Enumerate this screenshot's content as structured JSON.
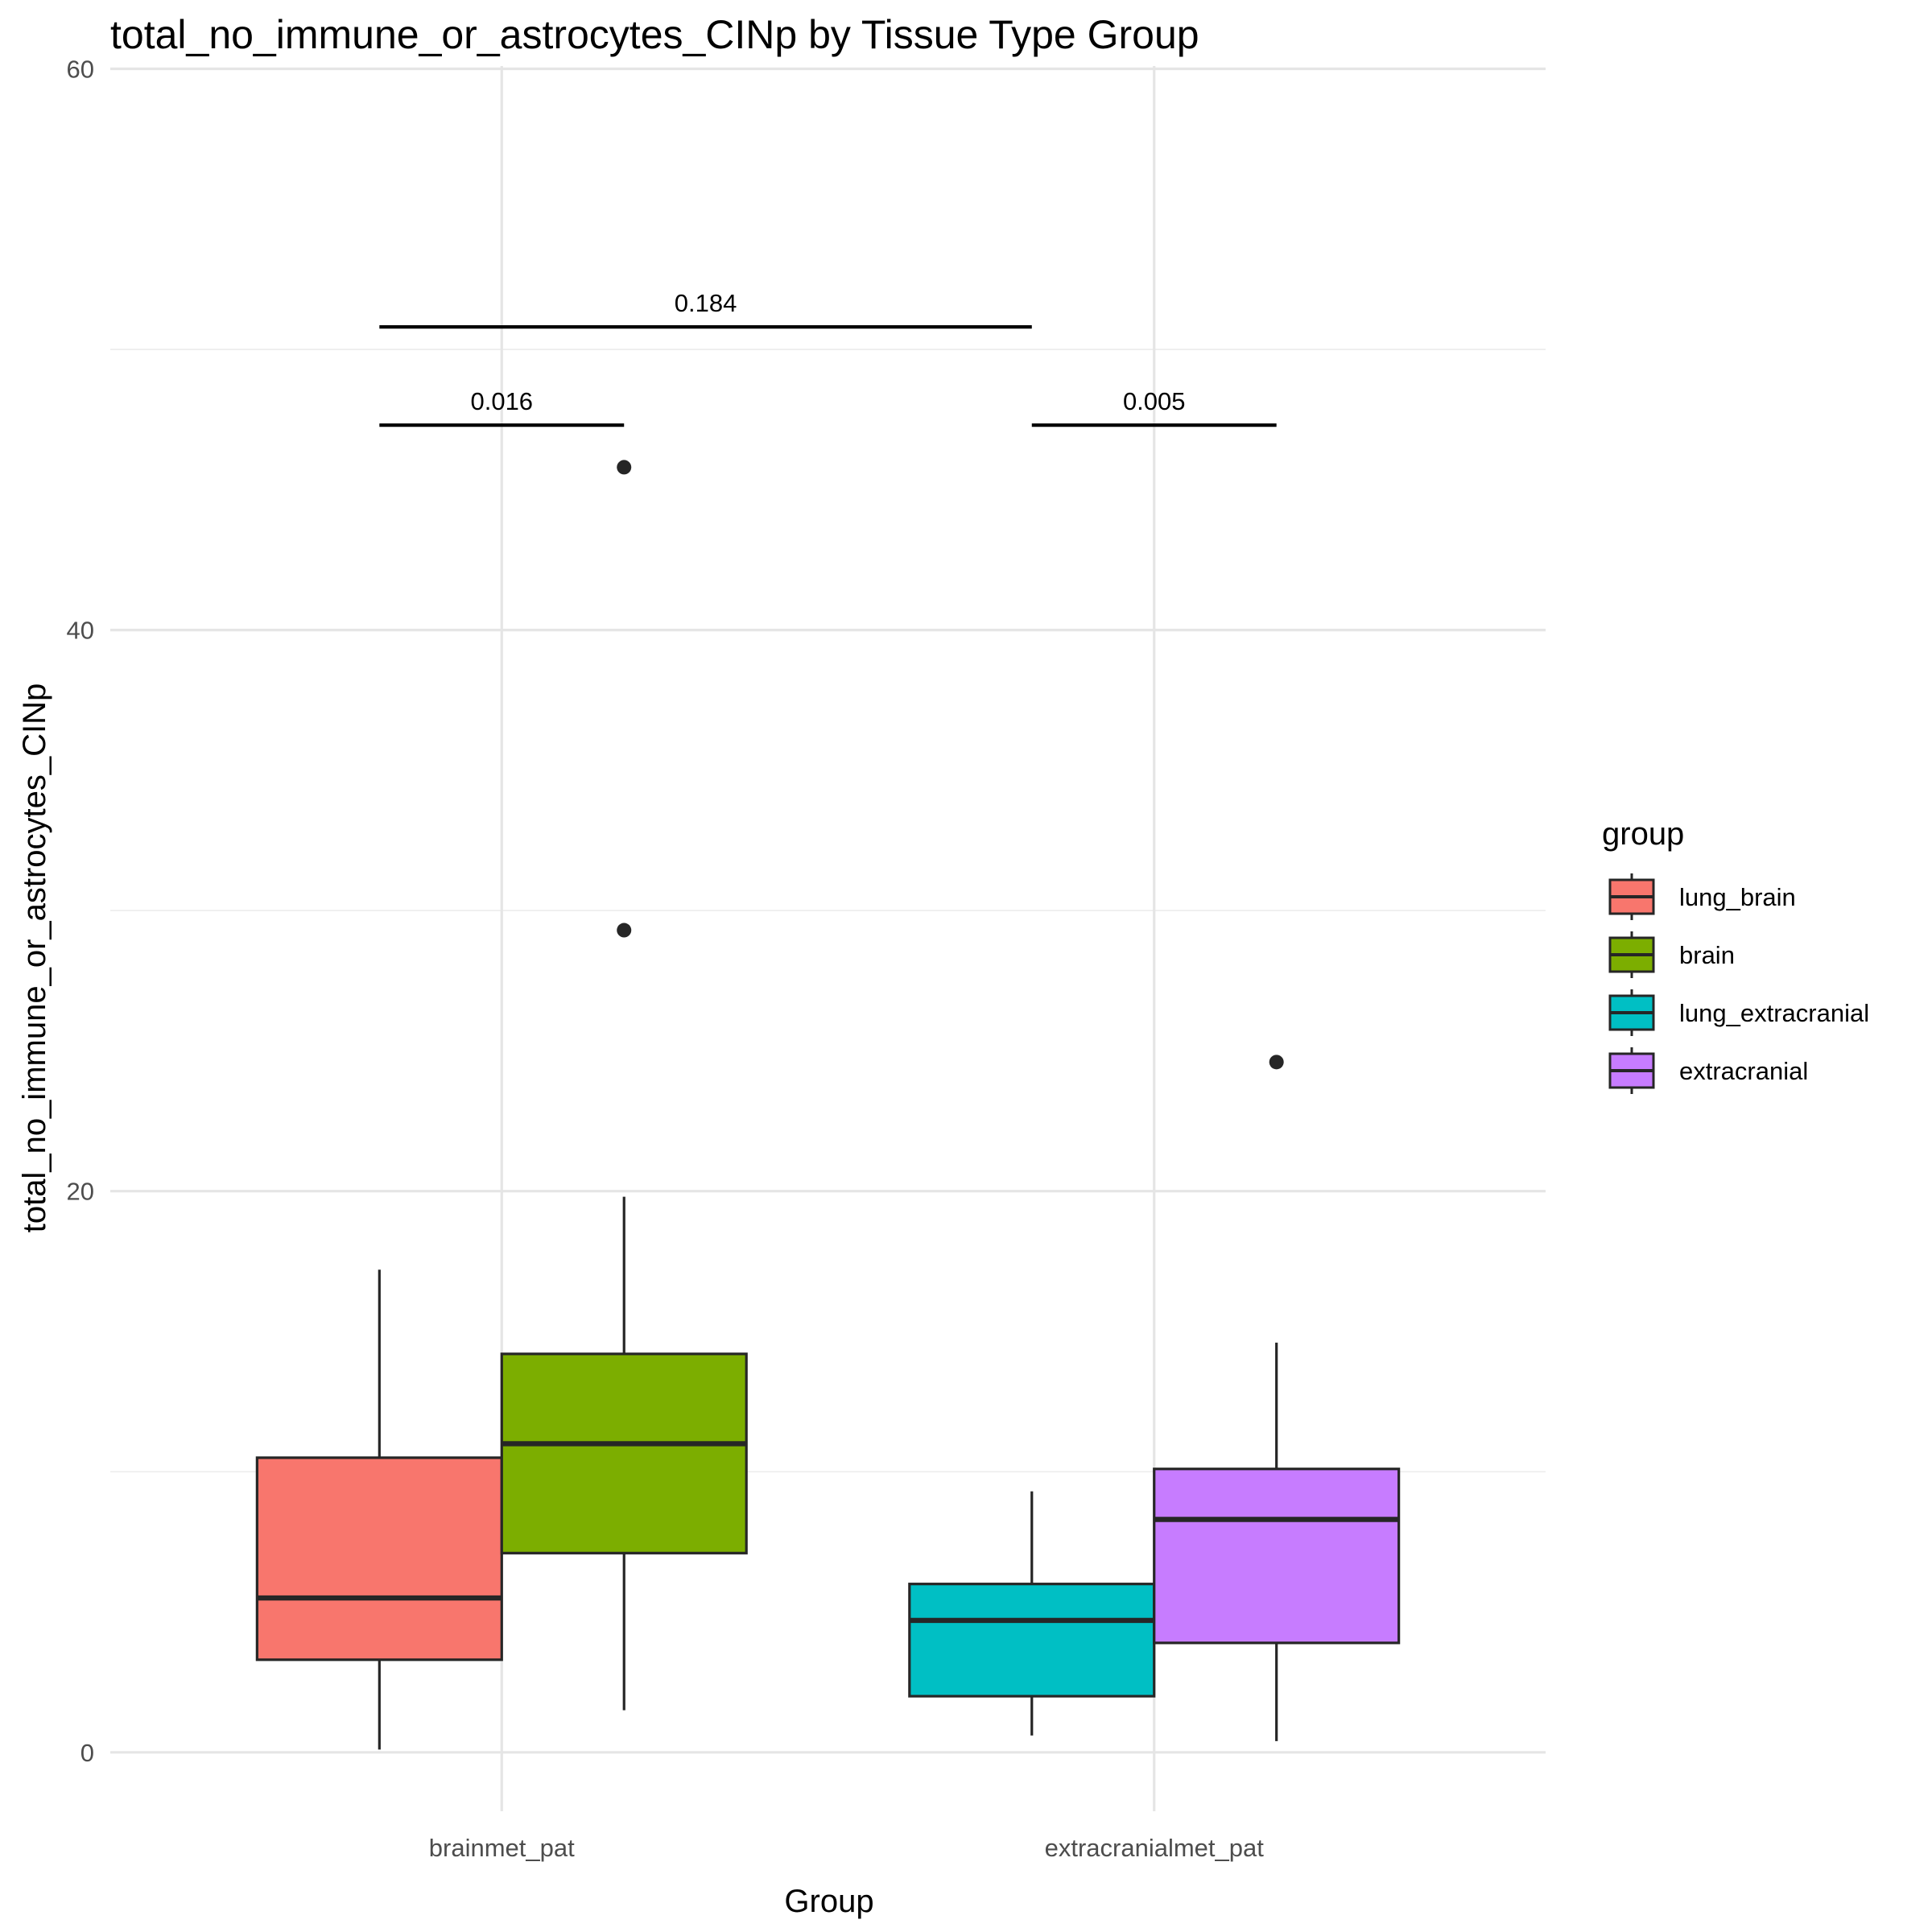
{
  "chart_data": {
    "type": "boxplot",
    "title": "total_no_immune_or_astrocytes_CINp by Tissue Type Group",
    "xlabel": "Group",
    "ylabel": "total_no_immune_or_astrocytes_CINp",
    "ylim": [
      -2.1,
      60.1
    ],
    "yticks": [
      0,
      20,
      40,
      60
    ],
    "grid": true,
    "legend": {
      "title": "group",
      "position": "right"
    },
    "categories": [
      "brainmet_pat",
      "extracranialmet_pat"
    ],
    "series": [
      {
        "name": "lung_brain",
        "category": "brainmet_pat",
        "color": "#F8766D",
        "lower_whisker": 0.1,
        "q1": 3.3,
        "median": 5.5,
        "q3": 10.5,
        "upper_whisker": 17.2,
        "outliers": []
      },
      {
        "name": "brain",
        "category": "brainmet_pat",
        "color": "#7CAE00",
        "lower_whisker": 1.5,
        "q1": 7.1,
        "median": 11.0,
        "q3": 14.2,
        "upper_whisker": 19.8,
        "outliers": [
          45.8,
          29.3
        ]
      },
      {
        "name": "lung_extracranial",
        "category": "extracranialmet_pat",
        "color": "#00BFC4",
        "lower_whisker": 0.6,
        "q1": 2.0,
        "median": 4.7,
        "q3": 6.0,
        "upper_whisker": 9.3,
        "outliers": []
      },
      {
        "name": "extracranial",
        "category": "extracranialmet_pat",
        "color": "#C77CFF",
        "lower_whisker": 0.4,
        "q1": 3.9,
        "median": 8.3,
        "q3": 10.1,
        "upper_whisker": 14.6,
        "outliers": [
          24.6
        ]
      }
    ],
    "comparisons": [
      {
        "label": "0.184",
        "from": "lung_brain",
        "to": "lung_extracranial",
        "y": 50.8
      },
      {
        "label": "0.016",
        "from": "lung_brain",
        "to": "brain",
        "y": 47.3
      },
      {
        "label": "0.005",
        "from": "lung_extracranial",
        "to": "extracranial",
        "y": 47.3
      }
    ]
  }
}
